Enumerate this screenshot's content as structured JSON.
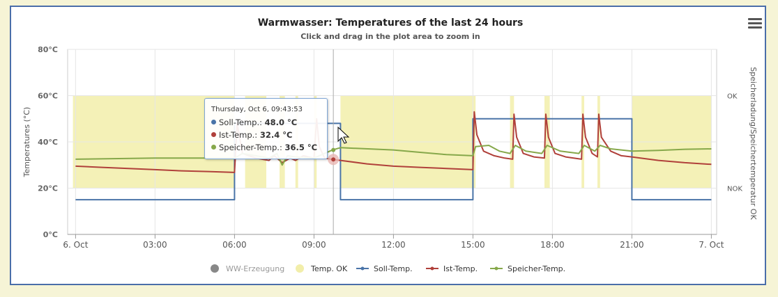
{
  "chart_data": {
    "type": "line",
    "title": "Warmwasser: Temperatures of the last 24 hours",
    "subtitle": "Click and drag in the plot area to zoom in",
    "ylabel": "Temperatures (°C)",
    "y2label": "Speicherladung/Speichertemperatur OK",
    "ylim": [
      0,
      80
    ],
    "yticks": [
      "0°C",
      "20°C",
      "40°C",
      "60°C",
      "80°C"
    ],
    "y2ticks": [
      "OK",
      "NOK"
    ],
    "xlim_hours": [
      -0.3,
      24.2
    ],
    "xticks": [
      {
        "h": 0,
        "label": "6. Oct"
      },
      {
        "h": 3,
        "label": "03:00"
      },
      {
        "h": 6,
        "label": "06:00"
      },
      {
        "h": 9,
        "label": "09:00"
      },
      {
        "h": 12,
        "label": "12:00"
      },
      {
        "h": 15,
        "label": "15:00"
      },
      {
        "h": 18,
        "label": "18:00"
      },
      {
        "h": 21,
        "label": "21:00"
      },
      {
        "h": 24,
        "label": "7. Oct"
      }
    ],
    "grid": true,
    "legend_position": "bottom",
    "temp_ok_bands": [
      [
        -0.1,
        6.0
      ],
      [
        6.4,
        7.2
      ],
      [
        7.7,
        7.9
      ],
      [
        8.3,
        8.4
      ],
      [
        9.0,
        9.1
      ],
      [
        10.0,
        15.1
      ],
      [
        16.4,
        16.55
      ],
      [
        17.7,
        17.9
      ],
      [
        19.1,
        19.2
      ],
      [
        19.7,
        19.8
      ],
      [
        21.0,
        24.0
      ]
    ],
    "temp_ok_range": [
      20,
      60
    ],
    "series": [
      {
        "name": "Soll-Temp.",
        "color": "#4a74a8",
        "step": true,
        "points": [
          [
            0,
            15
          ],
          [
            6.0,
            15
          ],
          [
            6.0,
            48
          ],
          [
            10.0,
            48
          ],
          [
            10.0,
            15
          ],
          [
            15.0,
            15
          ],
          [
            15.0,
            50
          ],
          [
            21.0,
            50
          ],
          [
            21.0,
            15
          ],
          [
            24.0,
            15
          ]
        ]
      },
      {
        "name": "Ist-Temp.",
        "color": "#b0403a",
        "points": [
          [
            0,
            29.5
          ],
          [
            1,
            29
          ],
          [
            2,
            28.5
          ],
          [
            3,
            28
          ],
          [
            4,
            27.5
          ],
          [
            5,
            27.2
          ],
          [
            6.0,
            26.8
          ],
          [
            6.1,
            48
          ],
          [
            6.3,
            35
          ],
          [
            6.8,
            33
          ],
          [
            7.3,
            32
          ],
          [
            7.5,
            34
          ],
          [
            7.8,
            31
          ],
          [
            8.1,
            33
          ],
          [
            8.3,
            32
          ],
          [
            8.6,
            34
          ],
          [
            9.0,
            33
          ],
          [
            9.1,
            50
          ],
          [
            9.2,
            38
          ],
          [
            9.4,
            33
          ],
          [
            9.7,
            32.4
          ],
          [
            10.0,
            32
          ],
          [
            11,
            30.5
          ],
          [
            12,
            29.5
          ],
          [
            13,
            29
          ],
          [
            14,
            28.5
          ],
          [
            15.0,
            28
          ],
          [
            15.05,
            53
          ],
          [
            15.15,
            43
          ],
          [
            15.4,
            36
          ],
          [
            15.8,
            34
          ],
          [
            16.2,
            33
          ],
          [
            16.5,
            32.5
          ],
          [
            16.55,
            52
          ],
          [
            16.65,
            42
          ],
          [
            16.9,
            35
          ],
          [
            17.3,
            33.5
          ],
          [
            17.7,
            33
          ],
          [
            17.75,
            52
          ],
          [
            17.85,
            42
          ],
          [
            18.1,
            35
          ],
          [
            18.5,
            33.5
          ],
          [
            19.1,
            32.5
          ],
          [
            19.15,
            52
          ],
          [
            19.25,
            42
          ],
          [
            19.5,
            35
          ],
          [
            19.7,
            33.5
          ],
          [
            19.75,
            52
          ],
          [
            19.85,
            42
          ],
          [
            20.2,
            36
          ],
          [
            20.6,
            34
          ],
          [
            21.0,
            33.5
          ],
          [
            22,
            32
          ],
          [
            23,
            31
          ],
          [
            24,
            30.3
          ]
        ]
      },
      {
        "name": "Speicher-Temp.",
        "color": "#86a84a",
        "points": [
          [
            0,
            32.5
          ],
          [
            3,
            33
          ],
          [
            6.0,
            33
          ],
          [
            6.3,
            35
          ],
          [
            6.8,
            34
          ],
          [
            7.3,
            33
          ],
          [
            7.6,
            35
          ],
          [
            7.8,
            30
          ],
          [
            8.0,
            34
          ],
          [
            8.3,
            33.5
          ],
          [
            9.0,
            33
          ],
          [
            9.7,
            36.5
          ],
          [
            10.0,
            37.5
          ],
          [
            12,
            36.5
          ],
          [
            13,
            35.5
          ],
          [
            14,
            34.5
          ],
          [
            15.0,
            34
          ],
          [
            15.1,
            38
          ],
          [
            15.6,
            38.5
          ],
          [
            16.0,
            36
          ],
          [
            16.4,
            35
          ],
          [
            16.6,
            38.5
          ],
          [
            17.0,
            36
          ],
          [
            17.6,
            35
          ],
          [
            17.8,
            38.5
          ],
          [
            18.3,
            36
          ],
          [
            19.0,
            35
          ],
          [
            19.2,
            38.5
          ],
          [
            19.6,
            36
          ],
          [
            19.8,
            38.5
          ],
          [
            20.2,
            37
          ],
          [
            21.0,
            36
          ],
          [
            22,
            36.3
          ],
          [
            23,
            36.8
          ],
          [
            24,
            37
          ]
        ]
      }
    ],
    "legend": [
      {
        "name": "WW-Erzeugung",
        "symbol": "circle",
        "color": "#888888",
        "hidden": true
      },
      {
        "name": "Temp. OK",
        "symbol": "circle",
        "color": "#f2eeaa"
      },
      {
        "name": "Soll-Temp.",
        "symbol": "line",
        "color": "#4a74a8"
      },
      {
        "name": "Ist-Temp.",
        "symbol": "line",
        "color": "#b0403a"
      },
      {
        "name": "Speicher-Temp.",
        "symbol": "line",
        "color": "#86a84a"
      }
    ],
    "crosshair_h": 9.73,
    "tooltip": {
      "title": "Thursday, Oct 6, 09:43:53",
      "rows": [
        {
          "name": "Soll-Temp.:",
          "value": "48.0 °C",
          "color": "#4a74a8"
        },
        {
          "name": "Ist-Temp.:",
          "value": "32.4 °C",
          "color": "#b0403a"
        },
        {
          "name": "Speicher-Temp.:",
          "value": "36.5 °C",
          "color": "#86a84a"
        }
      ]
    }
  }
}
